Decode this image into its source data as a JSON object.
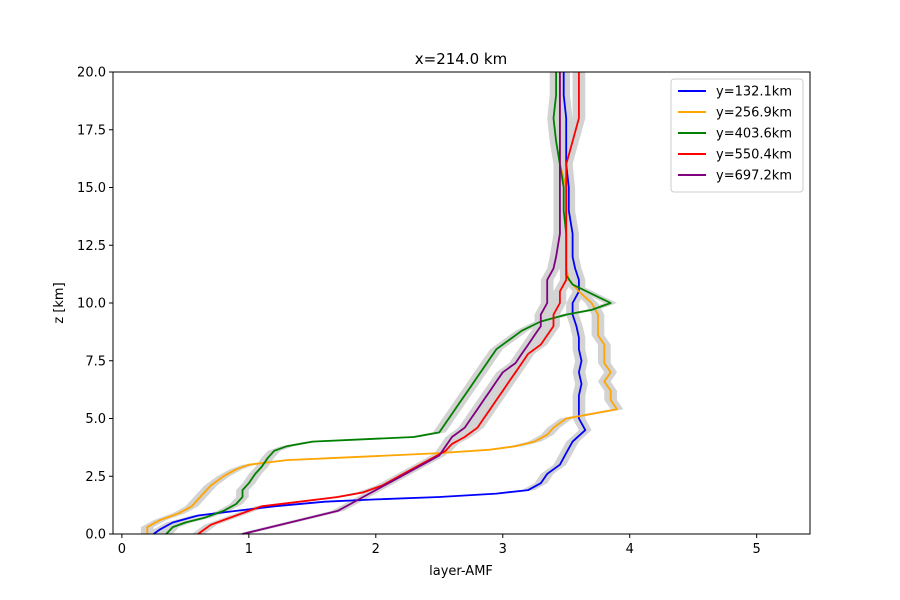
{
  "chart_data": {
    "type": "line",
    "title": "x=214.0 km",
    "xlabel": "layer-AMF",
    "ylabel": "z [km]",
    "xlim": [
      -0.07,
      5.42
    ],
    "ylim": [
      0,
      20
    ],
    "xticks": [
      0,
      1,
      2,
      3,
      4,
      5
    ],
    "xtick_labels": [
      "0",
      "1",
      "2",
      "3",
      "4",
      "5"
    ],
    "yticks": [
      0,
      2.5,
      5,
      7.5,
      10,
      12.5,
      15,
      17.5,
      20
    ],
    "ytick_labels": [
      "0.0",
      "2.5",
      "5.0",
      "7.5",
      "10.0",
      "12.5",
      "15.0",
      "17.5",
      "20.0"
    ],
    "grid": false,
    "legend_position": "top-right",
    "uncertainty_band": "light gray shading around each profile",
    "series": [
      {
        "name": "y=132.1km",
        "color": "#0000ff",
        "points": [
          [
            0.25,
            0.0
          ],
          [
            0.3,
            0.2
          ],
          [
            0.4,
            0.5
          ],
          [
            0.6,
            0.8
          ],
          [
            0.9,
            1.0
          ],
          [
            1.2,
            1.2
          ],
          [
            1.6,
            1.4
          ],
          [
            2.0,
            1.5
          ],
          [
            2.5,
            1.6
          ],
          [
            2.95,
            1.75
          ],
          [
            3.2,
            1.9
          ],
          [
            3.3,
            2.2
          ],
          [
            3.35,
            2.6
          ],
          [
            3.45,
            3.0
          ],
          [
            3.5,
            3.5
          ],
          [
            3.55,
            4.0
          ],
          [
            3.65,
            4.5
          ],
          [
            3.6,
            5.0
          ],
          [
            3.6,
            5.5
          ],
          [
            3.6,
            6.0
          ],
          [
            3.62,
            6.5
          ],
          [
            3.6,
            7.0
          ],
          [
            3.62,
            7.5
          ],
          [
            3.6,
            8.0
          ],
          [
            3.6,
            8.5
          ],
          [
            3.58,
            9.0
          ],
          [
            3.55,
            9.5
          ],
          [
            3.55,
            10.0
          ],
          [
            3.6,
            10.5
          ],
          [
            3.6,
            11.0
          ],
          [
            3.57,
            11.5
          ],
          [
            3.55,
            12.0
          ],
          [
            3.55,
            13.0
          ],
          [
            3.52,
            14.0
          ],
          [
            3.52,
            15.0
          ],
          [
            3.5,
            16.0
          ],
          [
            3.5,
            17.0
          ],
          [
            3.5,
            18.0
          ],
          [
            3.48,
            19.0
          ],
          [
            3.48,
            20.0
          ]
        ]
      },
      {
        "name": "y=256.9km",
        "color": "#ffa500",
        "points": [
          [
            0.2,
            0.0
          ],
          [
            0.2,
            0.3
          ],
          [
            0.3,
            0.6
          ],
          [
            0.45,
            0.9
          ],
          [
            0.55,
            1.2
          ],
          [
            0.6,
            1.5
          ],
          [
            0.65,
            1.8
          ],
          [
            0.7,
            2.1
          ],
          [
            0.8,
            2.5
          ],
          [
            0.9,
            2.8
          ],
          [
            1.0,
            3.0
          ],
          [
            1.3,
            3.2
          ],
          [
            1.7,
            3.3
          ],
          [
            2.1,
            3.4
          ],
          [
            2.5,
            3.5
          ],
          [
            2.9,
            3.65
          ],
          [
            3.1,
            3.8
          ],
          [
            3.25,
            4.0
          ],
          [
            3.35,
            4.3
          ],
          [
            3.4,
            4.6
          ],
          [
            3.5,
            5.0
          ],
          [
            3.7,
            5.2
          ],
          [
            3.9,
            5.4
          ],
          [
            3.85,
            5.8
          ],
          [
            3.85,
            6.2
          ],
          [
            3.8,
            6.6
          ],
          [
            3.85,
            7.0
          ],
          [
            3.8,
            7.4
          ],
          [
            3.8,
            7.8
          ],
          [
            3.8,
            8.2
          ],
          [
            3.75,
            8.6
          ],
          [
            3.75,
            9.0
          ],
          [
            3.75,
            9.5
          ],
          [
            3.7,
            10.0
          ],
          [
            3.6,
            10.5
          ],
          [
            3.52,
            11.0
          ],
          [
            3.5,
            11.5
          ],
          [
            3.5,
            12.0
          ],
          [
            3.5,
            13.0
          ],
          [
            3.5,
            14.0
          ],
          [
            3.5,
            15.0
          ],
          [
            3.45,
            16.0
          ],
          [
            3.45,
            17.0
          ],
          [
            3.45,
            18.0
          ],
          [
            3.45,
            19.0
          ],
          [
            3.45,
            20.0
          ]
        ]
      },
      {
        "name": "y=403.6km",
        "color": "#008000",
        "points": [
          [
            0.35,
            0.0
          ],
          [
            0.4,
            0.3
          ],
          [
            0.5,
            0.5
          ],
          [
            0.65,
            0.7
          ],
          [
            0.8,
            1.0
          ],
          [
            0.9,
            1.3
          ],
          [
            0.95,
            1.6
          ],
          [
            0.95,
            1.9
          ],
          [
            1.0,
            2.2
          ],
          [
            1.05,
            2.6
          ],
          [
            1.1,
            2.9
          ],
          [
            1.15,
            3.3
          ],
          [
            1.2,
            3.6
          ],
          [
            1.3,
            3.8
          ],
          [
            1.5,
            4.0
          ],
          [
            1.9,
            4.1
          ],
          [
            2.3,
            4.2
          ],
          [
            2.5,
            4.4
          ],
          [
            2.55,
            4.8
          ],
          [
            2.6,
            5.2
          ],
          [
            2.65,
            5.6
          ],
          [
            2.7,
            6.0
          ],
          [
            2.75,
            6.4
          ],
          [
            2.8,
            6.8
          ],
          [
            2.85,
            7.2
          ],
          [
            2.9,
            7.6
          ],
          [
            2.95,
            8.0
          ],
          [
            3.05,
            8.4
          ],
          [
            3.15,
            8.8
          ],
          [
            3.3,
            9.2
          ],
          [
            3.5,
            9.5
          ],
          [
            3.7,
            9.7
          ],
          [
            3.85,
            10.0
          ],
          [
            3.7,
            10.4
          ],
          [
            3.55,
            10.8
          ],
          [
            3.5,
            11.2
          ],
          [
            3.5,
            12.0
          ],
          [
            3.5,
            13.0
          ],
          [
            3.48,
            14.0
          ],
          [
            3.48,
            15.0
          ],
          [
            3.45,
            16.0
          ],
          [
            3.42,
            17.0
          ],
          [
            3.4,
            18.0
          ],
          [
            3.42,
            19.0
          ],
          [
            3.42,
            20.0
          ]
        ]
      },
      {
        "name": "y=550.4km",
        "color": "#ff0000",
        "points": [
          [
            0.6,
            0.0
          ],
          [
            0.65,
            0.2
          ],
          [
            0.7,
            0.4
          ],
          [
            0.8,
            0.6
          ],
          [
            0.9,
            0.8
          ],
          [
            1.0,
            1.0
          ],
          [
            1.1,
            1.2
          ],
          [
            1.4,
            1.4
          ],
          [
            1.7,
            1.6
          ],
          [
            1.9,
            1.8
          ],
          [
            2.05,
            2.1
          ],
          [
            2.15,
            2.4
          ],
          [
            2.25,
            2.7
          ],
          [
            2.35,
            3.0
          ],
          [
            2.45,
            3.3
          ],
          [
            2.55,
            3.6
          ],
          [
            2.6,
            3.9
          ],
          [
            2.7,
            4.2
          ],
          [
            2.8,
            4.6
          ],
          [
            2.85,
            5.0
          ],
          [
            2.9,
            5.4
          ],
          [
            2.95,
            5.8
          ],
          [
            3.0,
            6.2
          ],
          [
            3.05,
            6.6
          ],
          [
            3.1,
            7.0
          ],
          [
            3.15,
            7.4
          ],
          [
            3.2,
            7.8
          ],
          [
            3.3,
            8.2
          ],
          [
            3.35,
            8.6
          ],
          [
            3.4,
            9.0
          ],
          [
            3.4,
            9.5
          ],
          [
            3.45,
            10.0
          ],
          [
            3.45,
            10.5
          ],
          [
            3.5,
            11.0
          ],
          [
            3.5,
            11.5
          ],
          [
            3.5,
            12.0
          ],
          [
            3.5,
            13.0
          ],
          [
            3.5,
            14.0
          ],
          [
            3.5,
            15.0
          ],
          [
            3.5,
            16.0
          ],
          [
            3.55,
            17.0
          ],
          [
            3.6,
            18.0
          ],
          [
            3.6,
            19.0
          ],
          [
            3.6,
            20.0
          ]
        ]
      },
      {
        "name": "y=697.2km",
        "color": "#800080",
        "points": [
          [
            0.95,
            0.0
          ],
          [
            1.1,
            0.2
          ],
          [
            1.25,
            0.4
          ],
          [
            1.4,
            0.6
          ],
          [
            1.55,
            0.8
          ],
          [
            1.7,
            1.0
          ],
          [
            1.8,
            1.3
          ],
          [
            1.9,
            1.6
          ],
          [
            2.0,
            1.9
          ],
          [
            2.1,
            2.2
          ],
          [
            2.2,
            2.5
          ],
          [
            2.3,
            2.8
          ],
          [
            2.4,
            3.1
          ],
          [
            2.5,
            3.4
          ],
          [
            2.55,
            3.8
          ],
          [
            2.6,
            4.2
          ],
          [
            2.7,
            4.6
          ],
          [
            2.75,
            5.0
          ],
          [
            2.8,
            5.4
          ],
          [
            2.85,
            5.8
          ],
          [
            2.9,
            6.2
          ],
          [
            2.95,
            6.6
          ],
          [
            3.0,
            7.0
          ],
          [
            3.1,
            7.4
          ],
          [
            3.15,
            7.8
          ],
          [
            3.2,
            8.2
          ],
          [
            3.25,
            8.6
          ],
          [
            3.3,
            9.0
          ],
          [
            3.3,
            9.5
          ],
          [
            3.35,
            10.0
          ],
          [
            3.35,
            10.5
          ],
          [
            3.35,
            11.0
          ],
          [
            3.4,
            11.5
          ],
          [
            3.42,
            12.0
          ],
          [
            3.45,
            13.0
          ],
          [
            3.45,
            14.0
          ],
          [
            3.45,
            15.0
          ],
          [
            3.45,
            16.0
          ],
          [
            3.45,
            17.0
          ],
          [
            3.45,
            18.0
          ],
          [
            3.45,
            19.0
          ],
          [
            3.45,
            20.0
          ]
        ]
      }
    ]
  }
}
